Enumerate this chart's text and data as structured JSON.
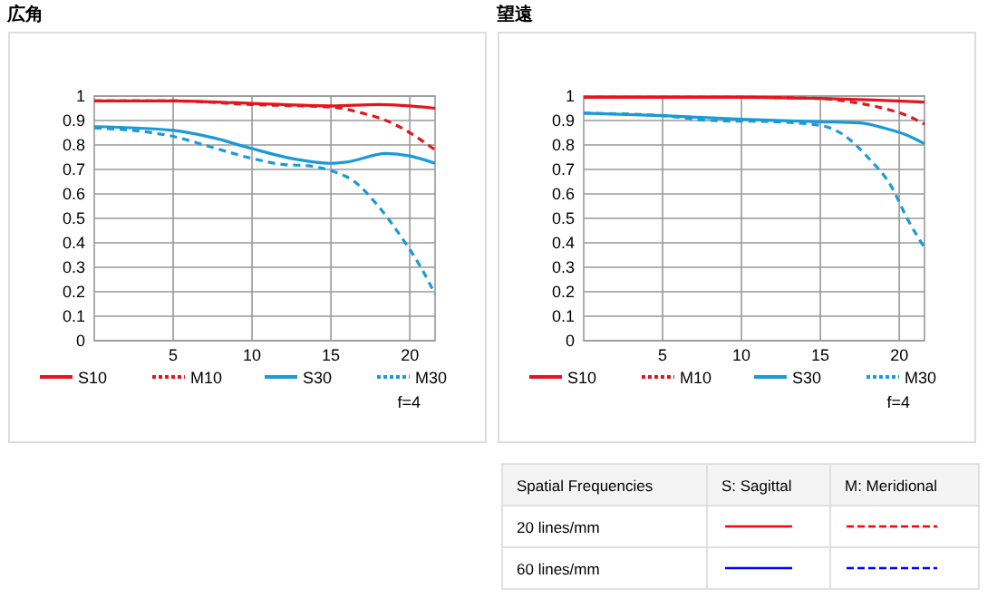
{
  "chart_data": [
    {
      "type": "line",
      "title": "広角",
      "annotations": [
        "f=4"
      ],
      "xlim": [
        0,
        21.6
      ],
      "xticks": [
        5,
        10,
        15,
        20
      ],
      "ylim": [
        0,
        1
      ],
      "yticks": [
        0,
        0.1,
        0.2,
        0.3,
        0.4,
        0.5,
        0.6,
        0.7,
        0.8,
        0.9,
        1
      ],
      "grid": true,
      "legend": "bottom",
      "series": [
        {
          "name": "S10",
          "color": "#e8141c",
          "line_style": "solid",
          "x": [
            0,
            5,
            10,
            15,
            18,
            21.6
          ],
          "values": [
            0.98,
            0.98,
            0.97,
            0.96,
            0.965,
            0.95
          ]
        },
        {
          "name": "M10",
          "color": "#e8141c",
          "line_style": "dashed",
          "x": [
            0,
            5,
            10,
            15,
            17,
            18.5,
            20,
            21.6
          ],
          "values": [
            0.98,
            0.98,
            0.965,
            0.955,
            0.93,
            0.9,
            0.85,
            0.78
          ]
        },
        {
          "name": "S30",
          "color": "#1a9ad6",
          "line_style": "solid",
          "x": [
            0,
            5,
            7.5,
            10,
            12.5,
            15,
            16,
            18.5,
            20,
            21.6
          ],
          "values": [
            0.875,
            0.86,
            0.83,
            0.785,
            0.745,
            0.725,
            0.73,
            0.765,
            0.755,
            0.725
          ]
        },
        {
          "name": "M30",
          "color": "#1a9ad6",
          "line_style": "dashed",
          "x": [
            0,
            5,
            7.5,
            10,
            12,
            13.5,
            15,
            16.5,
            18,
            19.5,
            20.7,
            21.6
          ],
          "values": [
            0.87,
            0.835,
            0.79,
            0.745,
            0.72,
            0.715,
            0.695,
            0.65,
            0.55,
            0.42,
            0.3,
            0.19
          ]
        }
      ]
    },
    {
      "type": "line",
      "title": "望遠",
      "annotations": [
        "f=4"
      ],
      "xlim": [
        0,
        21.6
      ],
      "xticks": [
        5,
        10,
        15,
        20
      ],
      "ylim": [
        0,
        1
      ],
      "yticks": [
        0,
        0.1,
        0.2,
        0.3,
        0.4,
        0.5,
        0.6,
        0.7,
        0.8,
        0.9,
        1
      ],
      "grid": true,
      "legend": "bottom",
      "series": [
        {
          "name": "S10",
          "color": "#e8141c",
          "line_style": "solid",
          "x": [
            0,
            10,
            15,
            18,
            21.6
          ],
          "values": [
            0.995,
            0.995,
            0.99,
            0.985,
            0.975
          ]
        },
        {
          "name": "M10",
          "color": "#e8141c",
          "line_style": "dashed",
          "x": [
            0,
            10,
            15,
            17,
            19,
            20.5,
            21.6
          ],
          "values": [
            0.995,
            0.995,
            0.99,
            0.975,
            0.95,
            0.92,
            0.885
          ]
        },
        {
          "name": "S30",
          "color": "#1a9ad6",
          "line_style": "solid",
          "x": [
            0,
            5,
            10,
            15,
            17.5,
            19,
            20.5,
            21.6
          ],
          "values": [
            0.93,
            0.92,
            0.905,
            0.895,
            0.89,
            0.87,
            0.84,
            0.805
          ]
        },
        {
          "name": "M30",
          "color": "#1a9ad6",
          "line_style": "dashed",
          "x": [
            0,
            5,
            8,
            12,
            15,
            16.5,
            18,
            19.5,
            20.5,
            21.6
          ],
          "values": [
            0.93,
            0.92,
            0.9,
            0.895,
            0.88,
            0.84,
            0.75,
            0.63,
            0.5,
            0.38
          ]
        }
      ]
    },
    {
      "type": "other",
      "annotations": [
        "Spatial Frequencies",
        "S: Sagittal",
        "M: Meridional",
        "20 lines/mm",
        "60 lines/mm"
      ]
    }
  ]
}
